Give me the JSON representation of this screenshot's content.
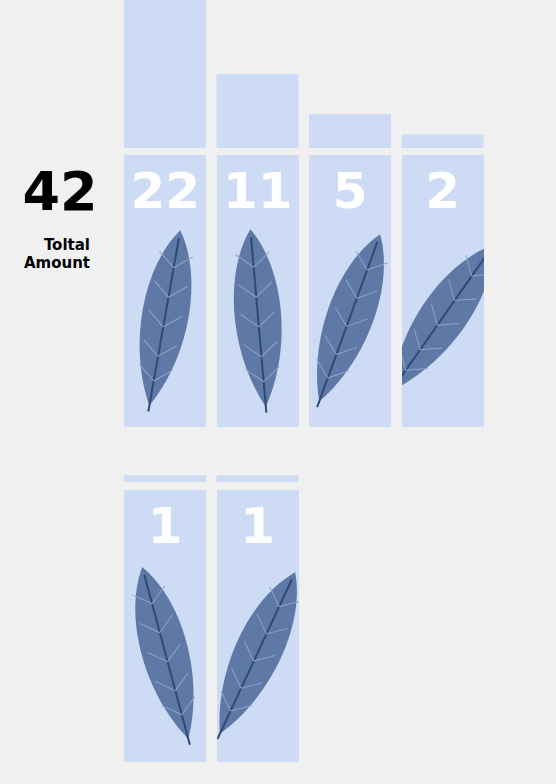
{
  "chart_data": {
    "type": "bar",
    "categories": [
      null,
      null,
      null,
      null,
      null,
      null
    ],
    "values": [
      22,
      11,
      5,
      2,
      1,
      1
    ],
    "color": "#cddbf4",
    "ylim": [
      0,
      22
    ],
    "tick_labels": false,
    "data_labels": true,
    "total": 42,
    "total_label": "Toltal Amount"
  }
}
